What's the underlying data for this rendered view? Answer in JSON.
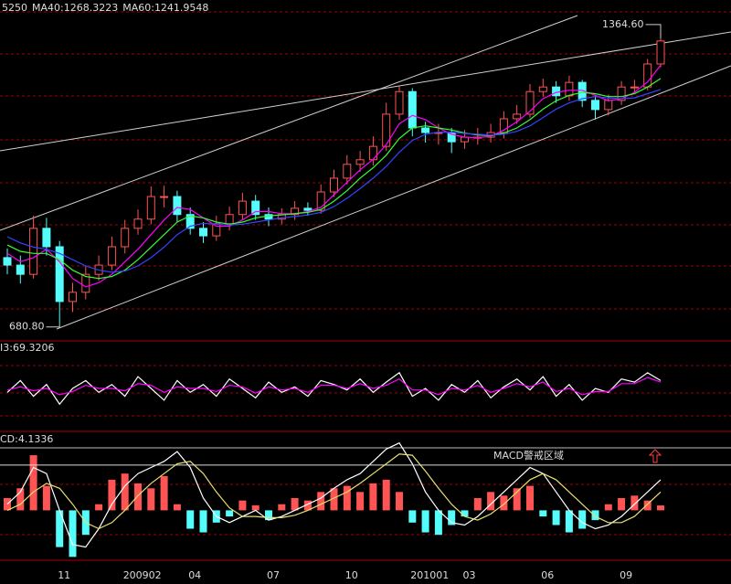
{
  "chart_data": [
    {
      "type": "candlestick",
      "categories": [
        null,
        null,
        null,
        null,
        "11",
        null,
        null,
        null,
        null,
        "200902",
        null,
        null,
        null,
        null,
        "04",
        null,
        null,
        null,
        null,
        null,
        "07",
        null,
        null,
        null,
        null,
        null,
        "10",
        null,
        null,
        null,
        null,
        "201001",
        null,
        null,
        null,
        "03",
        null,
        null,
        null,
        null,
        null,
        "06",
        null,
        null,
        null,
        null,
        null,
        "09",
        null,
        null,
        null
      ],
      "open": [
        840,
        822,
        800,
        910,
        866,
        735,
        757,
        800,
        822,
        866,
        910,
        932,
        986,
        986,
        943,
        910,
        892,
        921,
        943,
        975,
        943,
        932,
        943,
        958,
        953,
        997,
        1030,
        1063,
        1074,
        1106,
        1183,
        1237,
        1150,
        1139,
        1139,
        1117,
        1128,
        1128,
        1139,
        1172,
        1183,
        1237,
        1248,
        1227,
        1259,
        1216,
        1194,
        1216,
        1248,
        1248,
        1303
      ],
      "high": [
        862,
        845,
        940,
        935,
        880,
        780,
        820,
        845,
        890,
        930,
        955,
        1010,
        1012,
        1000,
        960,
        925,
        940,
        962,
        995,
        990,
        960,
        958,
        975,
        972,
        1015,
        1050,
        1085,
        1095,
        1130,
        1210,
        1250,
        1245,
        1165,
        1160,
        1150,
        1145,
        1150,
        1160,
        1190,
        1205,
        1255,
        1268,
        1262,
        1275,
        1265,
        1228,
        1230,
        1262,
        1265,
        1315,
        1364.6
      ],
      "low": [
        800,
        778,
        790,
        845,
        680.8,
        710,
        740,
        785,
        810,
        850,
        895,
        920,
        960,
        925,
        895,
        875,
        880,
        905,
        930,
        930,
        915,
        920,
        930,
        940,
        945,
        985,
        1015,
        1045,
        1060,
        1095,
        1170,
        1130,
        1115,
        1110,
        1090,
        1100,
        1110,
        1115,
        1125,
        1160,
        1175,
        1225,
        1210,
        1215,
        1200,
        1170,
        1180,
        1205,
        1235,
        1240,
        1295
      ],
      "close": [
        822,
        800,
        910,
        866,
        735,
        757,
        800,
        822,
        866,
        910,
        932,
        986,
        986,
        943,
        910,
        892,
        921,
        943,
        975,
        943,
        932,
        943,
        958,
        953,
        997,
        1030,
        1063,
        1074,
        1106,
        1183,
        1237,
        1150,
        1139,
        1139,
        1117,
        1128,
        1128,
        1139,
        1172,
        1183,
        1237,
        1248,
        1227,
        1259,
        1216,
        1194,
        1216,
        1248,
        1248,
        1303,
        1358
      ],
      "up_color": "#ff5454",
      "down_color": "#54fcfc",
      "series": [
        {
          "name": "5250",
          "color": "#ff00ff",
          "values": [
            850,
            830,
            840,
            860,
            830,
            790,
            770,
            780,
            800,
            830,
            860,
            895,
            930,
            960,
            955,
            935,
            915,
            915,
            930,
            950,
            950,
            945,
            945,
            950,
            960,
            990,
            1020,
            1050,
            1075,
            1110,
            1160,
            1180,
            1170,
            1150,
            1135,
            1128,
            1127,
            1130,
            1145,
            1165,
            1190,
            1220,
            1235,
            1240,
            1240,
            1228,
            1215,
            1220,
            1235,
            1260,
            1300
          ]
        },
        {
          "name": "MA40:1268.3223",
          "color": "#33ff33",
          "values": [
            870,
            855,
            850,
            850,
            835,
            810,
            795,
            790,
            795,
            810,
            835,
            865,
            895,
            925,
            940,
            935,
            925,
            920,
            925,
            935,
            940,
            942,
            945,
            948,
            955,
            975,
            1000,
            1030,
            1055,
            1085,
            1125,
            1150,
            1155,
            1150,
            1145,
            1138,
            1133,
            1132,
            1138,
            1150,
            1170,
            1195,
            1215,
            1228,
            1235,
            1232,
            1225,
            1225,
            1232,
            1248,
            1268.3223
          ]
        },
        {
          "name": "MA60:1241.9548",
          "color": "#3344ff",
          "values": [
            890,
            875,
            865,
            860,
            850,
            835,
            820,
            810,
            805,
            808,
            820,
            840,
            865,
            895,
            915,
            922,
            920,
            918,
            920,
            925,
            930,
            935,
            938,
            942,
            948,
            962,
            982,
            1005,
            1030,
            1058,
            1092,
            1120,
            1135,
            1140,
            1140,
            1137,
            1135,
            1133,
            1135,
            1142,
            1155,
            1175,
            1195,
            1210,
            1220,
            1225,
            1222,
            1220,
            1222,
            1232,
            1241.9548
          ]
        }
      ],
      "ylim": [
        643,
        1456
      ],
      "annotations": [
        {
          "text": "1364.60",
          "value": 1364.6
        },
        {
          "text": "680.80",
          "value": 680.8
        }
      ]
    },
    {
      "type": "line",
      "title": "I3:69.3206",
      "ylim": [
        0,
        100
      ],
      "series": [
        {
          "color": "#ffffff",
          "values": [
            45,
            60,
            40,
            55,
            30,
            50,
            60,
            45,
            55,
            40,
            65,
            50,
            35,
            60,
            45,
            55,
            40,
            62,
            50,
            38,
            58,
            45,
            52,
            40,
            60,
            55,
            48,
            62,
            45,
            58,
            70,
            40,
            50,
            35,
            55,
            45,
            60,
            38,
            52,
            62,
            48,
            65,
            40,
            55,
            35,
            50,
            45,
            62,
            58,
            70,
            60
          ]
        },
        {
          "color": "#ff00ff",
          "values": [
            48,
            52,
            47,
            50,
            42,
            46,
            54,
            50,
            50,
            47,
            56,
            54,
            45,
            52,
            50,
            50,
            46,
            54,
            52,
            44,
            52,
            48,
            50,
            45,
            54,
            54,
            50,
            56,
            50,
            54,
            62,
            48,
            48,
            42,
            50,
            48,
            54,
            45,
            50,
            56,
            52,
            58,
            46,
            50,
            42,
            46,
            46,
            56,
            56,
            64,
            58
          ]
        }
      ]
    },
    {
      "type": "macd",
      "title": "CD:4.1336",
      "ylim": [
        -40,
        60
      ],
      "values": [
        10,
        18,
        45,
        20,
        -30,
        -38,
        -20,
        5,
        25,
        30,
        22,
        18,
        28,
        5,
        -15,
        -18,
        -10,
        -5,
        8,
        4,
        -8,
        5,
        10,
        8,
        15,
        18,
        20,
        15,
        22,
        25,
        15,
        -10,
        -18,
        -20,
        -12,
        -5,
        10,
        15,
        12,
        18,
        20,
        -5,
        -12,
        -18,
        -15,
        -8,
        5,
        10,
        12,
        8,
        4
      ],
      "up_color": "#ff5454",
      "down_color": "#54fcfc",
      "series": [
        {
          "color": "#ffffff",
          "values": [
            5,
            15,
            35,
            30,
            0,
            -28,
            -30,
            -15,
            5,
            20,
            30,
            35,
            40,
            48,
            35,
            10,
            -5,
            -10,
            -5,
            0,
            -8,
            -5,
            0,
            5,
            10,
            18,
            25,
            30,
            40,
            50,
            55,
            38,
            15,
            0,
            -10,
            -12,
            -5,
            5,
            15,
            25,
            35,
            30,
            15,
            0,
            -10,
            -15,
            -12,
            -5,
            5,
            15,
            25
          ]
        },
        {
          "color": "#e8e070",
          "values": [
            0,
            5,
            15,
            22,
            18,
            5,
            -10,
            -15,
            -10,
            0,
            12,
            22,
            30,
            38,
            40,
            30,
            15,
            2,
            -5,
            -5,
            -6,
            -6,
            -4,
            0,
            5,
            10,
            15,
            22,
            30,
            38,
            46,
            45,
            32,
            18,
            5,
            -5,
            -8,
            -3,
            5,
            15,
            25,
            30,
            25,
            15,
            5,
            -5,
            -10,
            -10,
            -5,
            5,
            15
          ]
        }
      ],
      "alert": {
        "text": "MACD警戒区域",
        "value": 37
      }
    }
  ]
}
